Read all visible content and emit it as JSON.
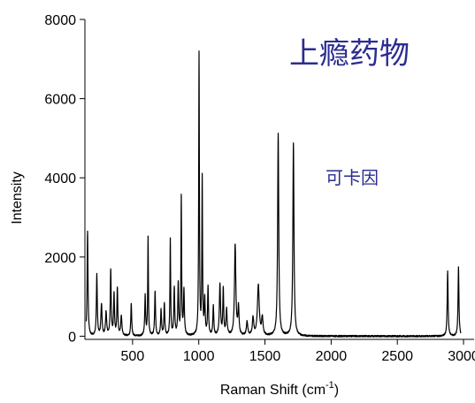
{
  "chart_data": {
    "type": "line",
    "xlabel": "Raman Shift (cm",
    "xlabel_superscript": "-1",
    "xlabel_suffix": ")",
    "ylabel": "Intensity",
    "xlim": [
      140,
      3080
    ],
    "ylim": [
      -80,
      8000
    ],
    "x_ticks": [
      500,
      1000,
      1500,
      2000,
      2500,
      3000
    ],
    "y_ticks": [
      0,
      2000,
      4000,
      6000,
      8000
    ],
    "x_tick_labels": [
      "500",
      "1000",
      "1500",
      "2000",
      "2500",
      "3000"
    ],
    "y_tick_labels": [
      "0",
      "2000",
      "4000",
      "6000",
      "8000"
    ],
    "grid": false,
    "line_color": "#000000",
    "annotation_color": "#2b2d8f",
    "annotations": {
      "title": "上瘾药物",
      "compound": "可卡因"
    },
    "series": [
      {
        "peaks": [
          {
            "x": 160,
            "y": 2650,
            "w": 4
          },
          {
            "x": 230,
            "y": 1550,
            "w": 4
          },
          {
            "x": 265,
            "y": 800,
            "w": 5
          },
          {
            "x": 300,
            "y": 600,
            "w": 5
          },
          {
            "x": 335,
            "y": 1650,
            "w": 4
          },
          {
            "x": 360,
            "y": 1050,
            "w": 4
          },
          {
            "x": 385,
            "y": 1200,
            "w": 4
          },
          {
            "x": 415,
            "y": 500,
            "w": 5
          },
          {
            "x": 490,
            "y": 800,
            "w": 4
          },
          {
            "x": 595,
            "y": 1000,
            "w": 4
          },
          {
            "x": 617,
            "y": 2500,
            "w": 3
          },
          {
            "x": 670,
            "y": 1100,
            "w": 4
          },
          {
            "x": 715,
            "y": 650,
            "w": 4
          },
          {
            "x": 740,
            "y": 800,
            "w": 4
          },
          {
            "x": 785,
            "y": 2450,
            "w": 3
          },
          {
            "x": 815,
            "y": 1200,
            "w": 4
          },
          {
            "x": 845,
            "y": 1300,
            "w": 4
          },
          {
            "x": 868,
            "y": 3500,
            "w": 3
          },
          {
            "x": 888,
            "y": 1150,
            "w": 4
          },
          {
            "x": 1002,
            "y": 7100,
            "w": 3
          },
          {
            "x": 1026,
            "y": 3950,
            "w": 3
          },
          {
            "x": 1045,
            "y": 900,
            "w": 4
          },
          {
            "x": 1070,
            "y": 1200,
            "w": 4
          },
          {
            "x": 1110,
            "y": 750,
            "w": 4
          },
          {
            "x": 1160,
            "y": 1300,
            "w": 5
          },
          {
            "x": 1185,
            "y": 1150,
            "w": 4
          },
          {
            "x": 1210,
            "y": 650,
            "w": 5
          },
          {
            "x": 1275,
            "y": 2300,
            "w": 6
          },
          {
            "x": 1300,
            "y": 700,
            "w": 5
          },
          {
            "x": 1365,
            "y": 350,
            "w": 6
          },
          {
            "x": 1410,
            "y": 450,
            "w": 6
          },
          {
            "x": 1450,
            "y": 1280,
            "w": 8
          },
          {
            "x": 1480,
            "y": 450,
            "w": 6
          },
          {
            "x": 1600,
            "y": 5100,
            "w": 5
          },
          {
            "x": 1715,
            "y": 4850,
            "w": 5
          },
          {
            "x": 2880,
            "y": 1650,
            "w": 4
          },
          {
            "x": 2962,
            "y": 1750,
            "w": 4
          }
        ]
      }
    ]
  }
}
